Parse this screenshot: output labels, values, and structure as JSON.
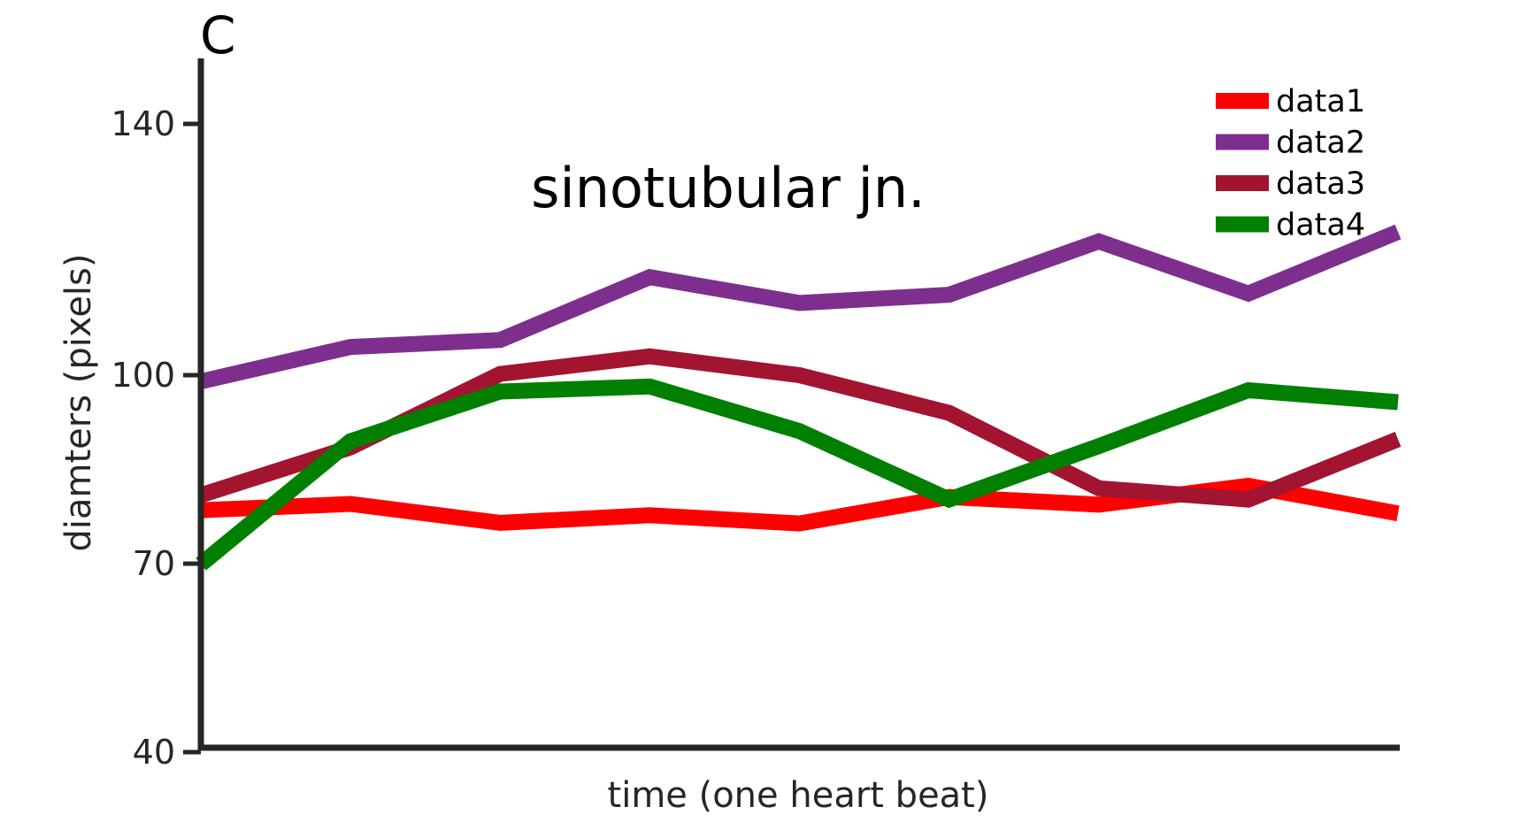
{
  "chart_data": {
    "type": "line",
    "panel_label": "C",
    "annotation": "sinotubular jn.",
    "xlabel": "time (one heart beat)",
    "ylabel": "diamters (pixels)",
    "ylim": [
      40,
      150
    ],
    "xlim": [
      1,
      9
    ],
    "yticks": [
      40,
      70,
      100,
      140
    ],
    "ytick_labels": [
      "40",
      "70",
      "100",
      "140"
    ],
    "x": [
      1,
      2,
      3,
      4,
      5,
      6,
      7,
      8,
      9
    ],
    "grid": false,
    "legend_position": "top-right",
    "series": [
      {
        "name": "data1",
        "color": "#ff0000",
        "values": [
          78.5,
          79.5,
          76.5,
          77.7,
          76.4,
          80.6,
          79.4,
          82.4,
          78.0
        ]
      },
      {
        "name": "data2",
        "color": "#7e2f8e",
        "values": [
          99.0,
          104.5,
          105.6,
          115.6,
          111.5,
          112.8,
          121.3,
          113.0,
          122.8
        ]
      },
      {
        "name": "data3",
        "color": "#a2142f",
        "values": [
          80.9,
          88.5,
          100.2,
          103.0,
          100.0,
          94.0,
          82.0,
          80.2,
          89.8
        ]
      },
      {
        "name": "data4",
        "color": "#008000",
        "values": [
          69.9,
          89.5,
          97.4,
          98.2,
          91.1,
          80.2,
          88.7,
          97.6,
          95.7
        ]
      }
    ]
  }
}
